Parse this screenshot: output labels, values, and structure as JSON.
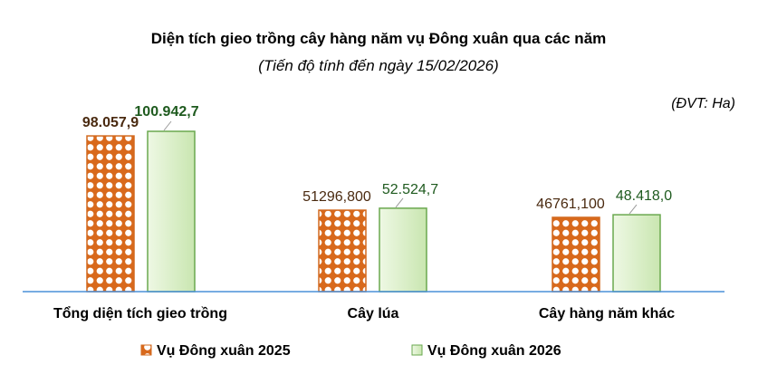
{
  "chart_data": {
    "type": "bar",
    "title": "Diện tích gieo trồng cây hàng năm vụ Đông xuân qua các năm",
    "subtitle": "(Tiến độ tính đến ngày 15/02/2026)",
    "unit_label": "(ĐVT: Ha)",
    "categories": [
      "Tổng diện tích gieo trồng",
      "Cây lúa",
      "Cây hàng năm khác"
    ],
    "series": [
      {
        "name": "Vụ Đông xuân 2025",
        "values": [
          98057.9,
          51296.8,
          46761.1
        ],
        "labels": [
          "98.057,9",
          "51296,800",
          "46761,100"
        ],
        "color": "#d2691e"
      },
      {
        "name": "Vụ Đông xuân 2026",
        "values": [
          100942.7,
          52524.7,
          48418.0
        ],
        "labels": [
          "100.942,7",
          "52.524,7",
          "48.418,0"
        ],
        "color": "#6aa84f"
      }
    ],
    "ylim": [
      0,
      100942.7
    ],
    "grid": false,
    "legend": "bottom",
    "axis_color": "#4a90d9"
  }
}
